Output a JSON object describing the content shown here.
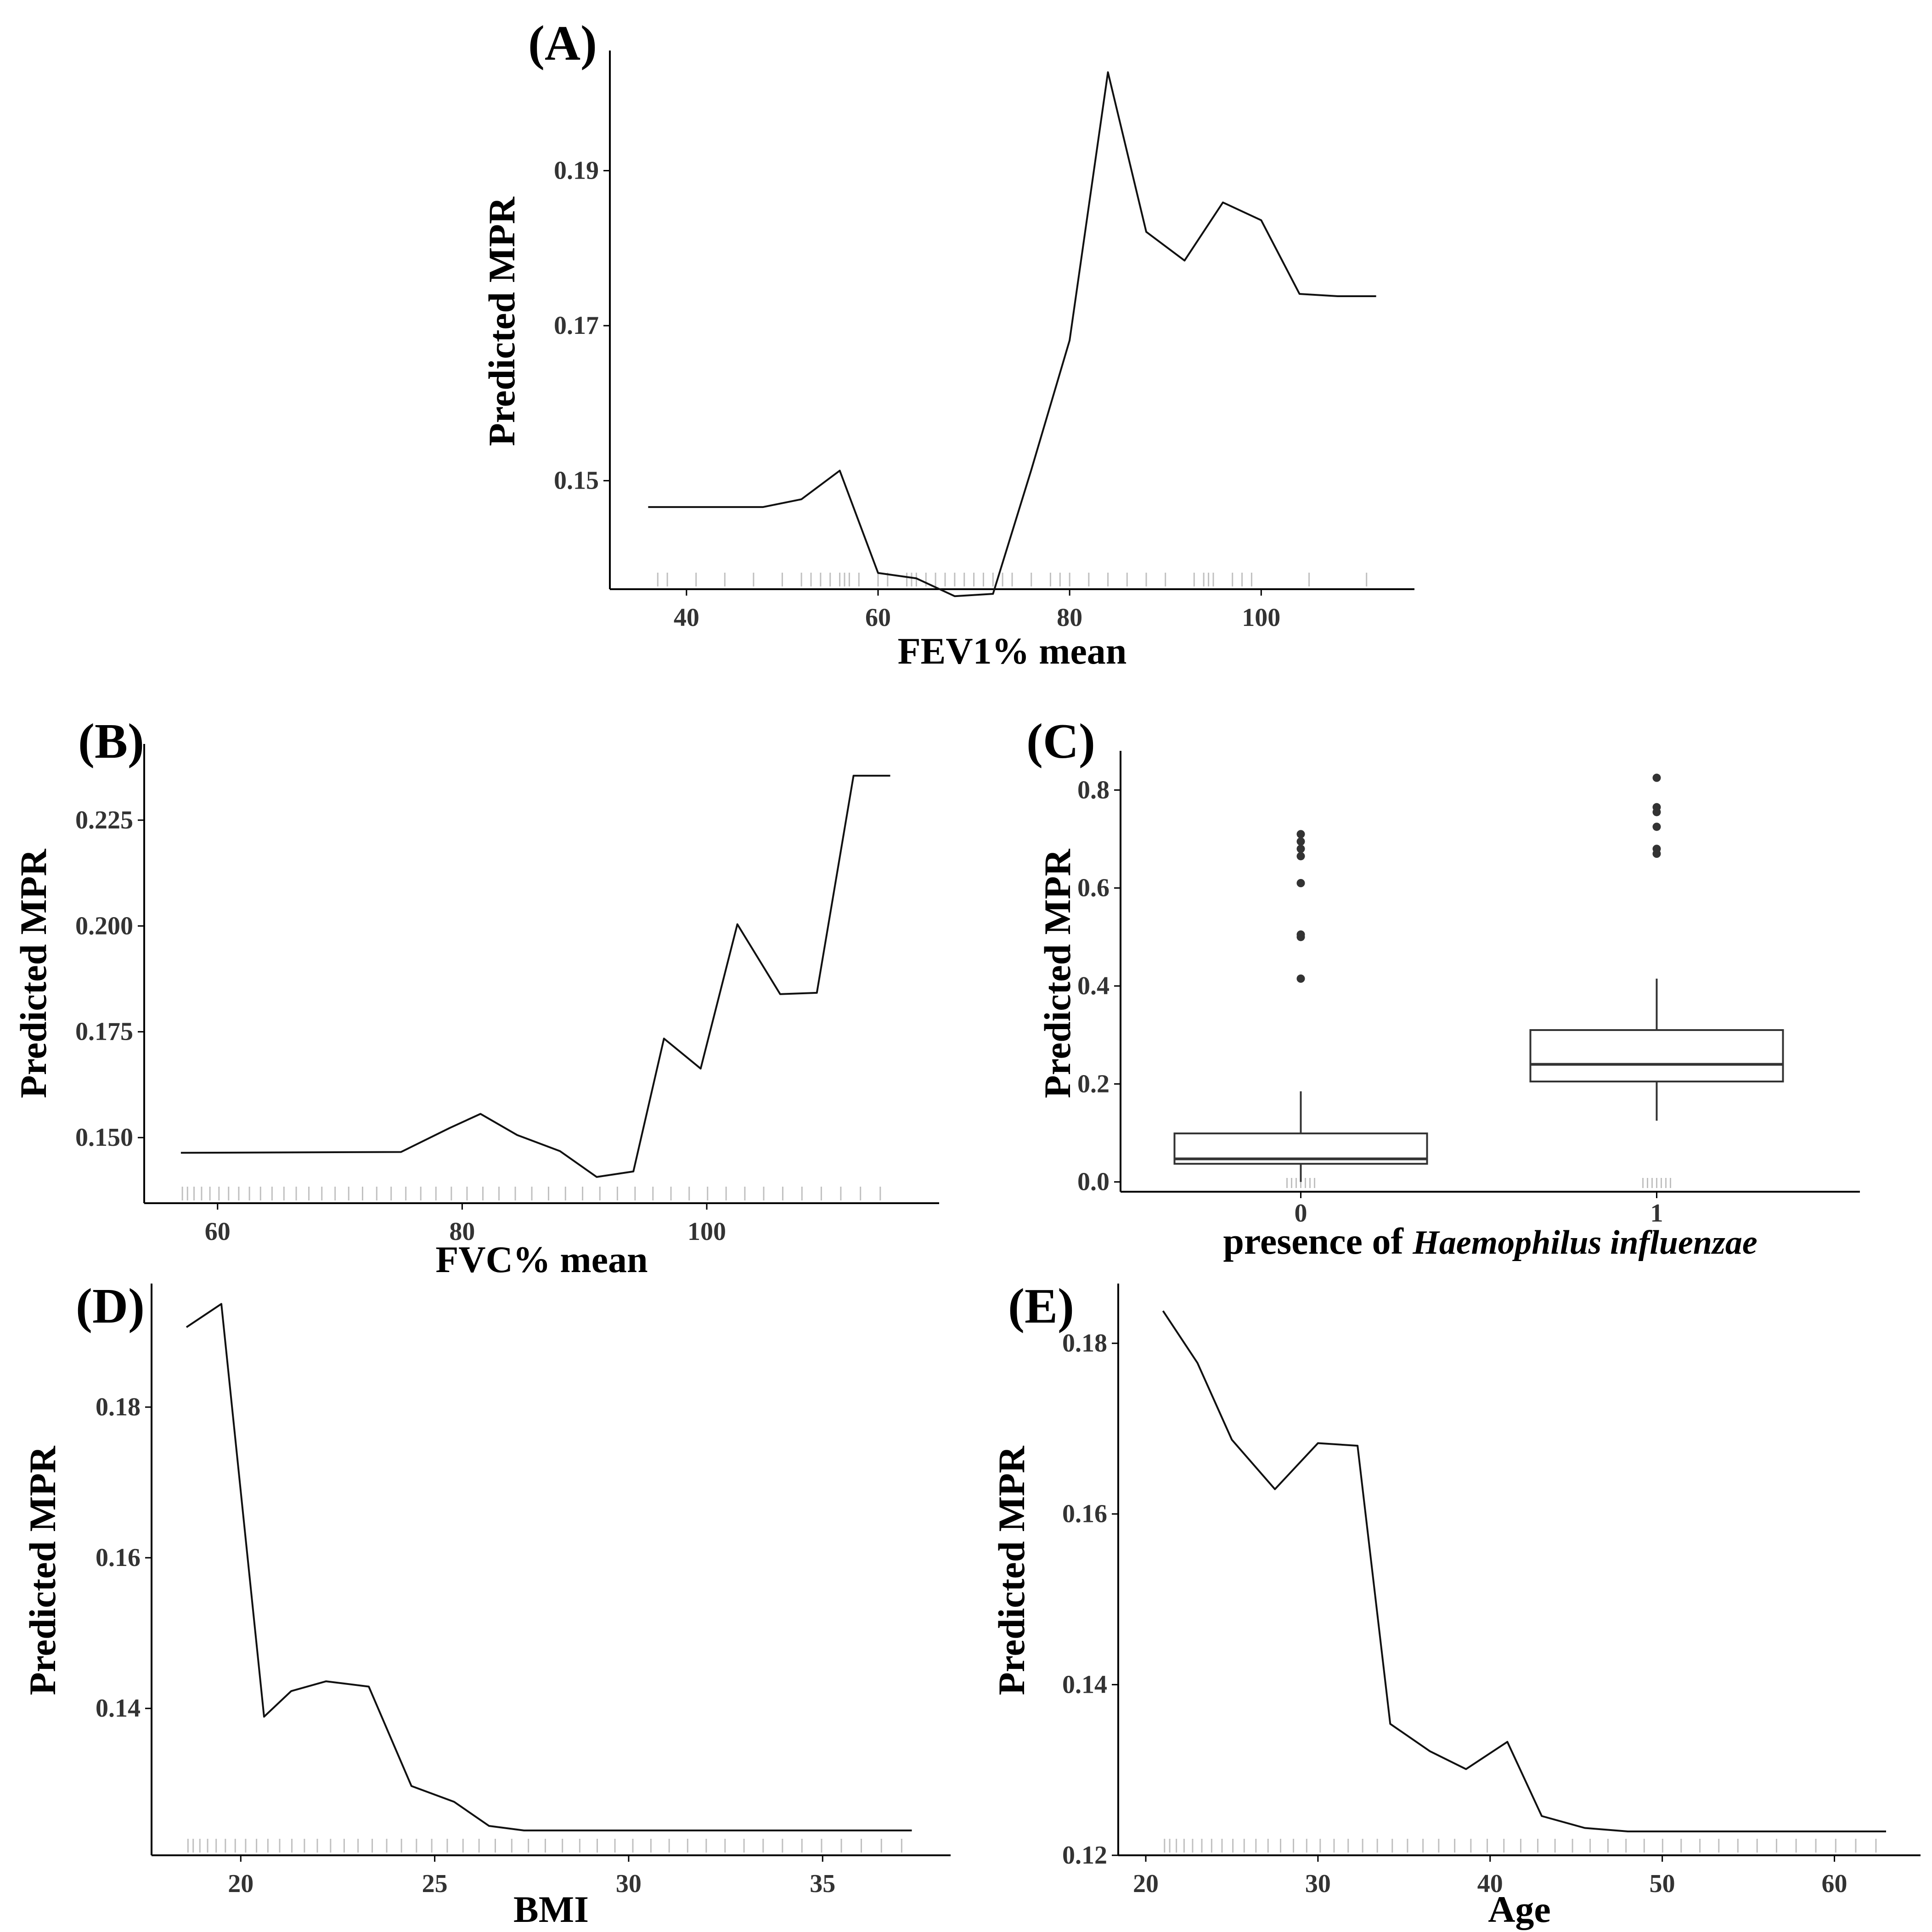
{
  "figure": {
    "chart_data": [
      {
        "id": "A",
        "panel_label": "(A)",
        "type": "line",
        "xlabel": "FEV1% mean",
        "ylabel": "Predicted MPR",
        "xlim": [
          32,
          116
        ],
        "ylim": [
          0.136,
          0.2055
        ],
        "xticks": [
          40,
          60,
          80,
          100
        ],
        "yticks": [
          0.15,
          0.17,
          0.19
        ],
        "ytick_labels": [
          "0.15",
          "0.17",
          "0.19"
        ],
        "x": [
          36,
          48,
          52,
          56,
          60,
          64,
          68,
          72,
          76,
          80,
          84,
          88,
          92,
          96,
          100,
          104,
          108,
          112
        ],
        "y": [
          0.1466,
          0.1466,
          0.1476,
          0.1513,
          0.1381,
          0.1374,
          0.1351,
          0.1354,
          0.1514,
          0.1681,
          0.2027,
          0.1821,
          0.1784,
          0.1859,
          0.1836,
          0.1741,
          0.1738,
          0.1738
        ],
        "rug": [
          37,
          38,
          41,
          44,
          47,
          50,
          52,
          53,
          54,
          55,
          56,
          56.5,
          57,
          58,
          60,
          61,
          63,
          63.5,
          64,
          65,
          66,
          67,
          68,
          69,
          70,
          71,
          72,
          73,
          74,
          76,
          78,
          79,
          80,
          82,
          84,
          86,
          88,
          90,
          93,
          94,
          94.5,
          95,
          97,
          98,
          99,
          105,
          111
        ]
      },
      {
        "id": "B",
        "panel_label": "(B)",
        "type": "line",
        "xlabel": "FVC% mean",
        "ylabel": "Predicted MPR",
        "xlim": [
          54,
          119
        ],
        "ylim": [
          0.1345,
          0.243
        ],
        "xticks": [
          60,
          80,
          100
        ],
        "yticks": [
          0.15,
          0.175,
          0.2,
          0.225
        ],
        "ytick_labels": [
          "0.150",
          "0.175",
          "0.200",
          "0.225"
        ],
        "x": [
          57,
          75,
          79,
          81.5,
          84.5,
          88,
          91,
          94,
          96.5,
          99.5,
          102.5,
          106,
          109,
          112,
          115
        ],
        "y": [
          0.1464,
          0.1466,
          0.1523,
          0.1556,
          0.1506,
          0.1468,
          0.1407,
          0.142,
          0.1734,
          0.1663,
          0.2004,
          0.1839,
          0.1842,
          0.2355,
          0.2355
        ]
      },
      {
        "id": "C",
        "panel_label": "(C)",
        "type": "box",
        "xlabel_prefix": "presence of ",
        "xlabel_species": "Haemophilus influenzae",
        "ylabel": "Predicted MPR",
        "categories": [
          "0",
          "1"
        ],
        "ylim": [
          -0.02,
          0.88
        ],
        "yticks": [
          0.0,
          0.2,
          0.4,
          0.6,
          0.8
        ],
        "ytick_labels": [
          "0.0",
          "0.2",
          "0.4",
          "0.6",
          "0.8"
        ],
        "boxes": [
          {
            "category": "0",
            "whisker_low": 0.0,
            "q1": 0.037,
            "median": 0.047,
            "q3": 0.099,
            "whisker_high": 0.185,
            "outliers": [
              0.415,
              0.5,
              0.505,
              0.61,
              0.665,
              0.68,
              0.695,
              0.71
            ]
          },
          {
            "category": "1",
            "whisker_low": 0.125,
            "q1": 0.205,
            "median": 0.24,
            "q3": 0.31,
            "whisker_high": 0.415,
            "outliers": [
              0.67,
              0.68,
              0.725,
              0.755,
              0.765,
              0.825
            ]
          }
        ]
      },
      {
        "id": "D",
        "panel_label": "(D)",
        "type": "line",
        "xlabel": "BMI",
        "ylabel": "Predicted MPR",
        "xlim": [
          17.7,
          38.3
        ],
        "ylim": [
          0.1205,
          0.1964
        ],
        "xticks": [
          20,
          25,
          30,
          35
        ],
        "yticks": [
          0.14,
          0.16,
          0.18
        ],
        "ytick_labels": [
          "0.14",
          "0.16",
          "0.18"
        ],
        "x": [
          18.6,
          19.5,
          20.6,
          21.3,
          22.2,
          23.3,
          24.4,
          25.5,
          26.4,
          27.3,
          37.3
        ],
        "y": [
          0.1906,
          0.1937,
          0.1389,
          0.1423,
          0.1436,
          0.1429,
          0.1297,
          0.1276,
          0.1244,
          0.1238,
          0.1238
        ]
      },
      {
        "id": "E",
        "panel_label": "(E)",
        "type": "line",
        "xlabel": "Age",
        "ylabel": "Predicted MPR",
        "xlim": [
          18.4,
          65
        ],
        "ylim": [
          0.12,
          0.187
        ],
        "xticks": [
          20,
          30,
          40,
          50,
          60
        ],
        "yticks": [
          0.12,
          0.14,
          0.16,
          0.18
        ],
        "ytick_labels": [
          "0.12",
          "0.14",
          "0.16",
          "0.18"
        ],
        "x": [
          21,
          23,
          25,
          27.5,
          30,
          32.3,
          34.2,
          36.5,
          38.6,
          41,
          43,
          45.5,
          48,
          63
        ],
        "y": [
          0.1838,
          0.1777,
          0.1687,
          0.1629,
          0.1683,
          0.168,
          0.1354,
          0.1322,
          0.1301,
          0.1333,
          0.1246,
          0.1232,
          0.1228,
          0.1228
        ]
      }
    ]
  }
}
